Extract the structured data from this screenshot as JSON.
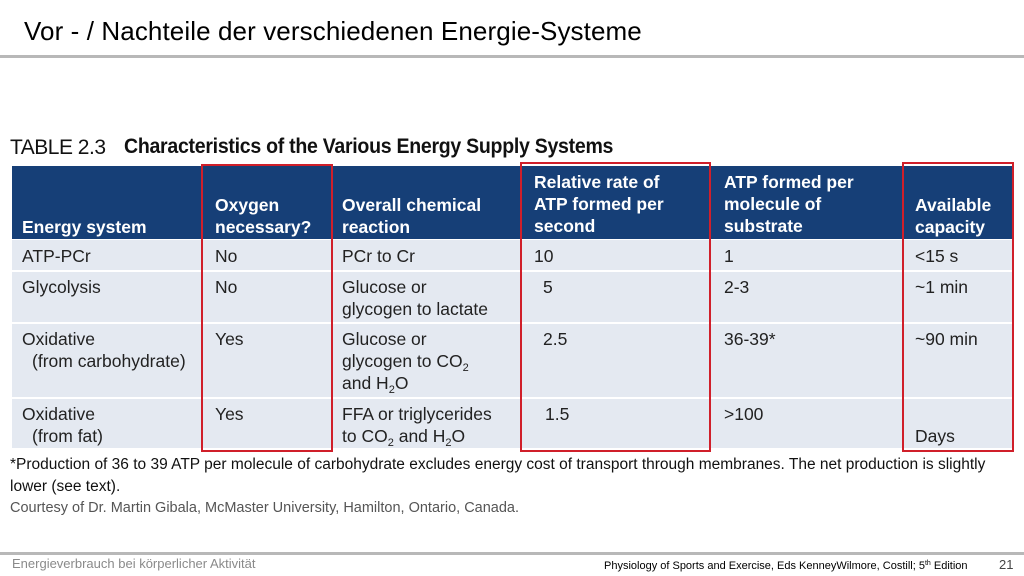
{
  "slide": {
    "title": "Vor - / Nachteile der verschiedenen Energie-Systeme",
    "footer_left": "Energieverbrauch bei körperlicher Aktivität",
    "footer_citation_pre": "Physiology of Sports and Exercise, Eds KenneyWilmore, Costill; 5",
    "footer_citation_sup": "th",
    "footer_citation_post": " Edition",
    "page_number": "21"
  },
  "table": {
    "number": "TABLE 2.3",
    "caption": "Characteristics of the Various Energy Supply Systems",
    "headers": {
      "energy_system": [
        "Energy system"
      ],
      "oxygen": [
        "Oxygen",
        "necessary?"
      ],
      "reaction": [
        "Overall chemical",
        "reaction"
      ],
      "rate": [
        "Relative rate of",
        "ATP formed per",
        "second"
      ],
      "atp_per_molecule": [
        "ATP formed per",
        "molecule of",
        "substrate"
      ],
      "capacity": [
        "Available",
        "capacity"
      ]
    },
    "rows": [
      {
        "system": [
          "ATP-PCr"
        ],
        "oxygen": "No",
        "reaction": [
          "PCr to Cr"
        ],
        "rate": "10",
        "atp": "1",
        "capacity": "<15 s"
      },
      {
        "system": [
          "Glycolysis"
        ],
        "oxygen": "No",
        "reaction": [
          "Glucose or",
          "glycogen to lactate"
        ],
        "rate": "5",
        "atp": "2-3",
        "capacity": "~1 min"
      },
      {
        "system": [
          "Oxidative",
          "(from carbohydrate)"
        ],
        "oxygen": "Yes",
        "reaction": [
          "Glucose or",
          "glycogen to CO",
          "2",
          "and H",
          "2",
          "O"
        ],
        "rate": "2.5",
        "atp": "36-39*",
        "capacity": "~90 min"
      },
      {
        "system": [
          "Oxidative",
          "(from fat)"
        ],
        "oxygen": "Yes",
        "reaction": [
          "FFA or triglycerides",
          "to CO",
          "2",
          " and H",
          "2",
          "O"
        ],
        "rate": "1.5",
        "atp": ">100",
        "capacity": "Days"
      }
    ],
    "footnote": "*Production of 36 to 39 ATP per molecule of carbohydrate excludes energy cost of transport through membranes. The net production is slightly lower (see text).",
    "courtesy": "Courtesy of Dr. Martin Gibala, McMaster University, Hamilton, Ontario, Canada."
  },
  "colors": {
    "header_band": "#163f77",
    "body_band": "#e4e9f1",
    "highlight": "#d01f2a"
  }
}
